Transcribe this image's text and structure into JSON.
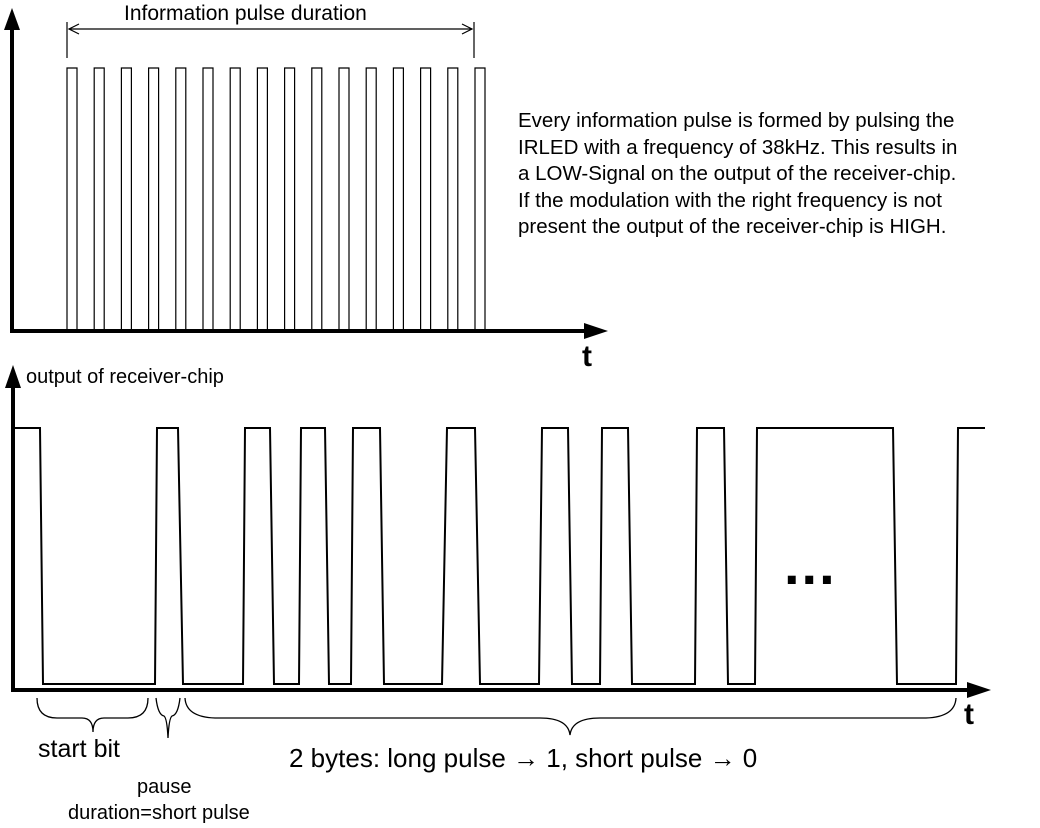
{
  "top_diagram": {
    "duration_label": "Information pulse duration",
    "t_label": "t",
    "pulse_count": 16
  },
  "description": "Every information pulse is formed by pulsing the\nIRLED with a frequency of 38kHz. This results in\na LOW-Signal on the output of the receiver-chip.\nIf the modulation with the right frequency is not\npresent the output of the receiver-chip is HIGH.",
  "bottom_diagram": {
    "y_label": "output of receiver-chip",
    "t_label": "t",
    "ellipsis": "...",
    "start_bit_label": "start bit",
    "pause_label": "pause",
    "pause_duration_label": "duration=short pulse",
    "bytes_label": "2 bytes: long pulse → 1, short pulse → 0"
  }
}
